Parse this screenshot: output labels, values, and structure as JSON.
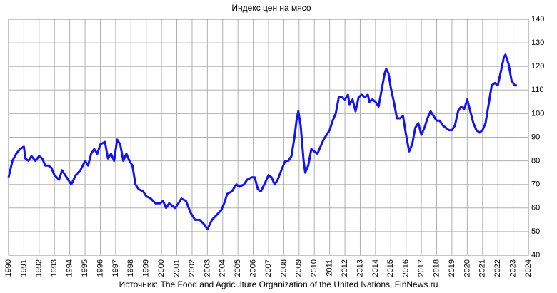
{
  "chart_data": {
    "type": "line",
    "title": "Индекс цен на мясо",
    "source": "Источник: The Food and Agriculture Organization of the United Nations, FinNews.ru",
    "xlim": [
      1990,
      2024
    ],
    "ylim": [
      40,
      140
    ],
    "xticks": [
      1990,
      1991,
      1992,
      1993,
      1994,
      1995,
      1996,
      1997,
      1998,
      1999,
      2000,
      2001,
      2002,
      2003,
      2004,
      2005,
      2006,
      2007,
      2008,
      2009,
      2010,
      2011,
      2012,
      2013,
      2014,
      2015,
      2016,
      2017,
      2018,
      2019,
      2020,
      2021,
      2022,
      2023,
      2024
    ],
    "yticks": [
      40,
      50,
      60,
      70,
      80,
      90,
      100,
      110,
      120,
      130,
      140
    ],
    "grid": true,
    "series": [
      {
        "color": "#1414f0",
        "x": [
          1990.0,
          1990.25,
          1990.5,
          1990.75,
          1991.0,
          1991.1,
          1991.3,
          1991.5,
          1991.75,
          1992.0,
          1992.2,
          1992.4,
          1992.6,
          1992.8,
          1993.0,
          1993.3,
          1993.5,
          1993.7,
          1994.0,
          1994.1,
          1994.4,
          1994.7,
          1995.0,
          1995.2,
          1995.4,
          1995.6,
          1995.8,
          1996.0,
          1996.3,
          1996.5,
          1996.7,
          1996.9,
          1997.1,
          1997.3,
          1997.5,
          1997.7,
          1997.9,
          1998.1,
          1998.3,
          1998.5,
          1998.8,
          1999.0,
          1999.3,
          1999.6,
          1999.9,
          2000.1,
          2000.3,
          2000.5,
          2000.7,
          2000.9,
          2001.1,
          2001.3,
          2001.6,
          2001.9,
          2002.2,
          2002.5,
          2002.8,
          2003.0,
          2003.3,
          2003.6,
          2003.9,
          2004.1,
          2004.3,
          2004.6,
          2004.9,
          2005.1,
          2005.4,
          2005.6,
          2005.9,
          2006.1,
          2006.3,
          2006.5,
          2006.8,
          2007.0,
          2007.2,
          2007.4,
          2007.6,
          2007.9,
          2008.1,
          2008.3,
          2008.5,
          2008.7,
          2008.85,
          2008.95,
          2009.1,
          2009.3,
          2009.4,
          2009.6,
          2009.8,
          2010.0,
          2010.2,
          2010.4,
          2010.6,
          2010.8,
          2011.0,
          2011.2,
          2011.4,
          2011.6,
          2011.8,
          2012.0,
          2012.2,
          2012.3,
          2012.5,
          2012.7,
          2012.9,
          2013.1,
          2013.3,
          2013.5,
          2013.6,
          2013.8,
          2014.0,
          2014.2,
          2014.4,
          2014.6,
          2014.7,
          2014.85,
          2015.0,
          2015.2,
          2015.4,
          2015.6,
          2015.8,
          2016.0,
          2016.2,
          2016.4,
          2016.6,
          2016.8,
          2017.0,
          2017.2,
          2017.4,
          2017.6,
          2017.8,
          2018.0,
          2018.2,
          2018.4,
          2018.6,
          2018.8,
          2019.0,
          2019.2,
          2019.4,
          2019.6,
          2019.8,
          2020.0,
          2020.2,
          2020.4,
          2020.6,
          2020.8,
          2021.0,
          2021.2,
          2021.4,
          2021.6,
          2021.8,
          2022.0,
          2022.2,
          2022.4,
          2022.5,
          2022.7,
          2022.9,
          2023.1,
          2023.25
        ],
        "values": [
          73,
          80,
          83,
          85,
          86,
          81,
          80,
          82,
          80,
          82,
          81,
          78,
          78,
          77,
          74,
          72,
          76,
          74,
          71,
          70,
          74,
          76,
          80,
          78,
          83,
          85,
          83,
          87,
          88,
          81,
          83,
          80,
          89,
          87,
          80,
          83,
          80,
          78,
          70,
          68,
          67,
          65,
          64,
          62,
          62,
          63,
          60,
          62,
          61,
          60,
          62,
          64,
          63,
          58,
          55,
          55,
          53,
          51,
          55,
          57,
          59,
          62,
          66,
          67,
          70,
          69,
          70,
          72,
          73,
          73,
          68,
          67,
          71,
          74,
          73,
          70,
          72,
          77,
          80,
          80,
          82,
          90,
          98,
          101,
          95,
          80,
          75,
          78,
          85,
          84,
          83,
          86,
          89,
          91,
          93,
          97,
          100,
          107,
          107,
          106,
          108,
          104,
          106,
          101,
          107,
          108,
          107,
          108,
          105,
          106,
          105,
          103,
          110,
          117,
          119,
          117,
          111,
          105,
          98,
          98,
          99,
          91,
          84,
          87,
          94,
          96,
          91,
          94,
          98,
          101,
          99,
          97,
          97,
          95,
          94,
          93,
          93,
          95,
          101,
          103,
          102,
          106,
          101,
          96,
          93,
          92,
          93,
          96,
          104,
          112,
          113,
          112,
          118,
          124,
          125,
          121,
          114,
          112,
          112
        ]
      }
    ]
  }
}
